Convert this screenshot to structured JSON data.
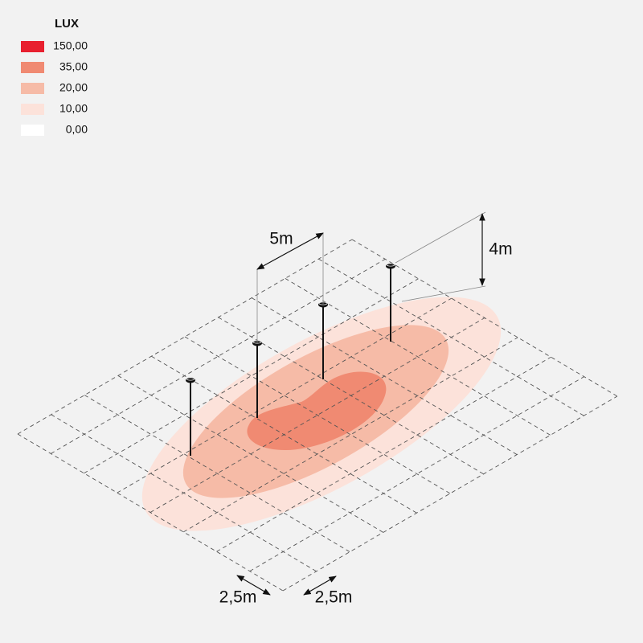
{
  "legend": {
    "title": "LUX",
    "items": [
      {
        "label": "150,00",
        "color": "#e8202f"
      },
      {
        "label": "35,00",
        "color": "#f08a72"
      },
      {
        "label": "20,00",
        "color": "#f6bba7"
      },
      {
        "label": "10,00",
        "color": "#fce2da"
      },
      {
        "label": "0,00",
        "color": "#ffffff"
      }
    ]
  },
  "dimensions": {
    "spacing": "5m",
    "height": "4m",
    "grid_x": "2,5m",
    "grid_y": "2,5m"
  }
}
